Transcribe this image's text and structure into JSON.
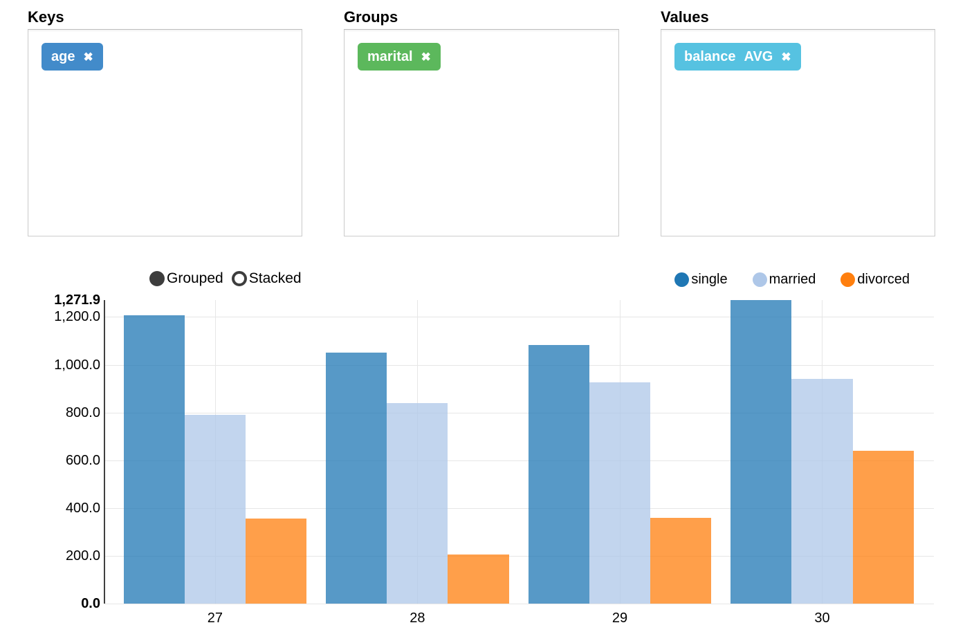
{
  "icons": {
    "remove": "✖"
  },
  "panels": [
    {
      "id": "keys",
      "title": "Keys",
      "tags": [
        {
          "label": "age",
          "agg": "",
          "color": "#428bca"
        }
      ]
    },
    {
      "id": "groups",
      "title": "Groups",
      "tags": [
        {
          "label": "marital",
          "agg": "",
          "color": "#5cb85c"
        }
      ]
    },
    {
      "id": "values",
      "title": "Values",
      "tags": [
        {
          "label": "balance",
          "agg": "AVG",
          "color": "#56c2e1"
        }
      ]
    }
  ],
  "chart_controls": {
    "options": [
      {
        "label": "Grouped",
        "selected": true
      },
      {
        "label": "Stacked",
        "selected": false
      }
    ]
  },
  "chart_data": {
    "type": "bar",
    "mode": "grouped",
    "categories": [
      "27",
      "28",
      "29",
      "30"
    ],
    "series": [
      {
        "name": "single",
        "legend_color": "#1f77b4",
        "bar_color": "rgba(31,119,180,0.75)",
        "values": [
          1207.6,
          1049.9,
          1081.7,
          1271.9
        ]
      },
      {
        "name": "married",
        "legend_color": "#aec7e8",
        "bar_color": "rgba(174,199,232,0.75)",
        "values": [
          791.7,
          839.8,
          926.9,
          941.7
        ]
      },
      {
        "name": "divorced",
        "legend_color": "#ff7f0e",
        "bar_color": "rgba(255,127,14,0.75)",
        "values": [
          354.9,
          205.3,
          357.9,
          639.8
        ]
      }
    ],
    "ylim": [
      0,
      1271.9
    ],
    "yticks": [
      {
        "label": "0.0",
        "value": 0,
        "bold": true
      },
      {
        "label": "200.0",
        "value": 200,
        "bold": false
      },
      {
        "label": "400.0",
        "value": 400,
        "bold": false
      },
      {
        "label": "600.0",
        "value": 600,
        "bold": false
      },
      {
        "label": "800.0",
        "value": 800,
        "bold": false
      },
      {
        "label": "1,000.0",
        "value": 1000,
        "bold": false
      },
      {
        "label": "1,200.0",
        "value": 1200,
        "bold": false
      },
      {
        "label": "1,271.9",
        "value": 1271.9,
        "bold": true
      }
    ],
    "grid": true,
    "legend_position": "top-right"
  }
}
